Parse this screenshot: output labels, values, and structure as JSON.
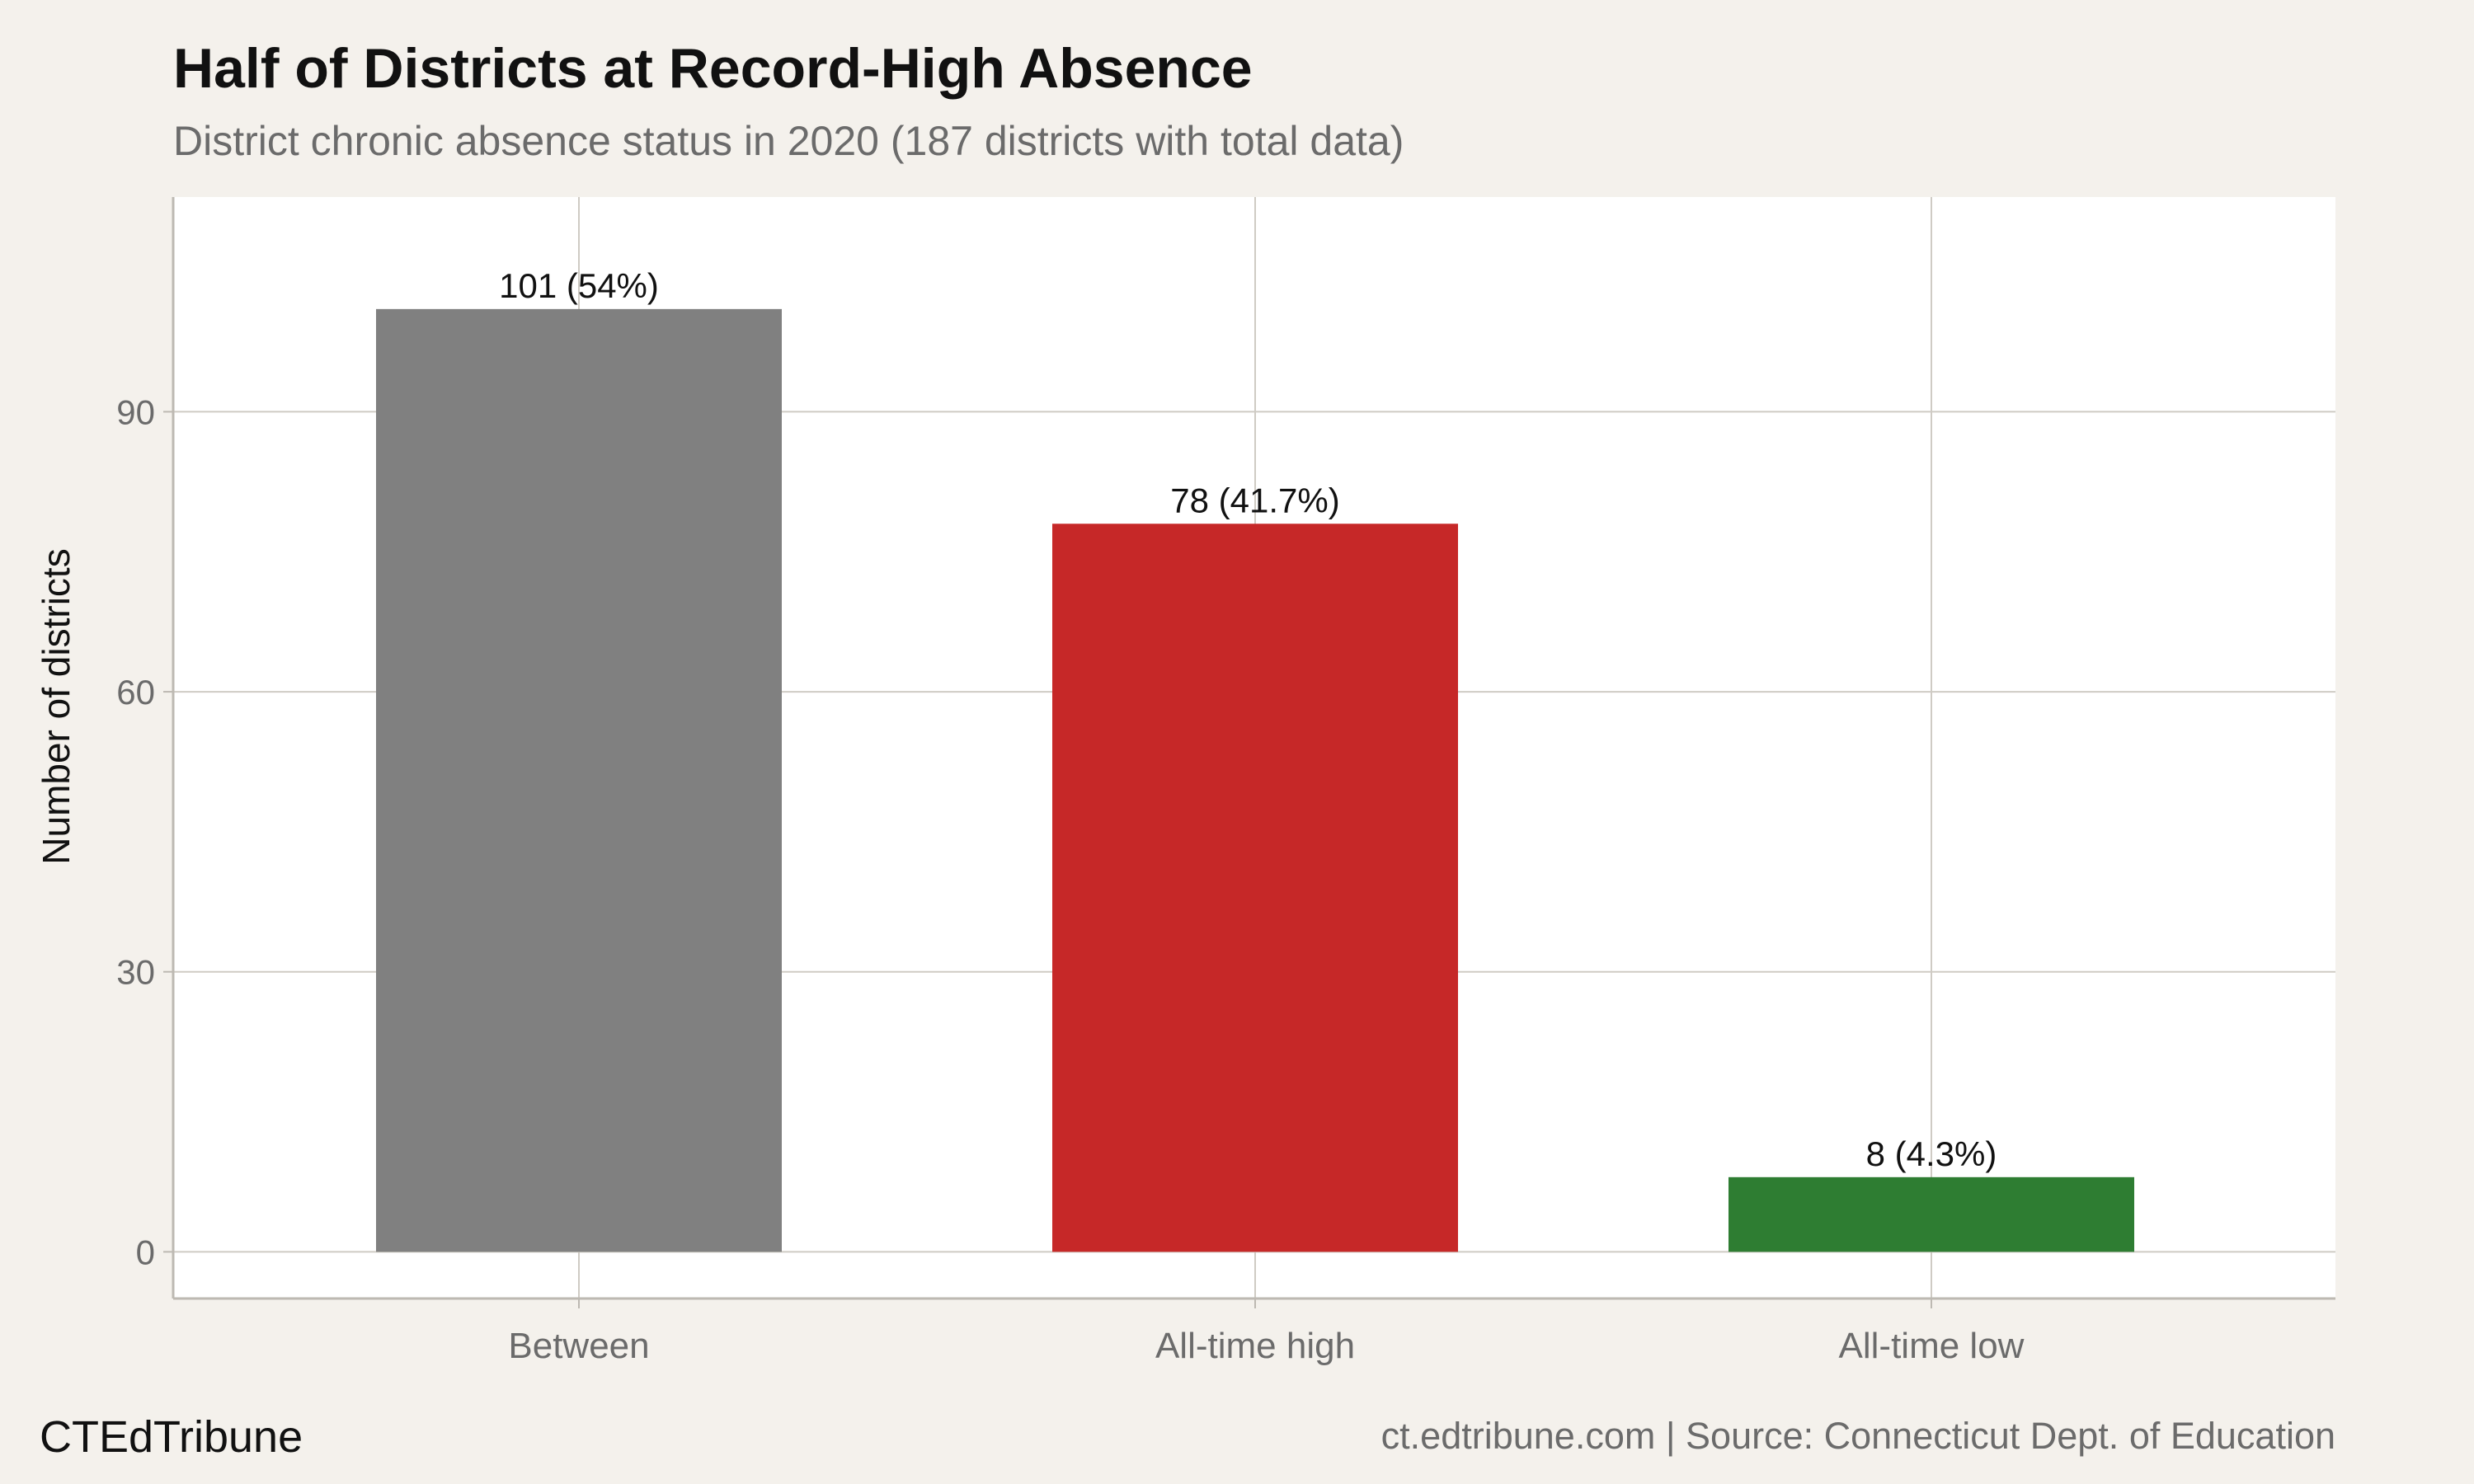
{
  "title": "Half of Districts at Record-High Absence",
  "subtitle": "District chronic absence status in 2020 (187 districts with total data)",
  "brand": "CTEdTribune",
  "source": "ct.edtribune.com | Source: Connecticut Dept. of Education",
  "chart_data": {
    "type": "bar",
    "title": "Half of Districts at Record-High Absence",
    "subtitle": "District chronic absence status in 2020 (187 districts with total data)",
    "xlabel": "",
    "ylabel": "Number of districts",
    "categories": [
      "Between",
      "All-time high",
      "All-time low"
    ],
    "values": [
      101,
      78,
      8
    ],
    "data_labels": [
      "101 (54%)",
      "78 (41.7%)",
      "8 (4.3%)"
    ],
    "colors": [
      "#808080",
      "#c62828",
      "#2e7d32"
    ],
    "yticks": [
      0,
      30,
      60,
      90
    ],
    "ylim": [
      -5,
      113
    ],
    "grid": true,
    "legend": "none"
  }
}
